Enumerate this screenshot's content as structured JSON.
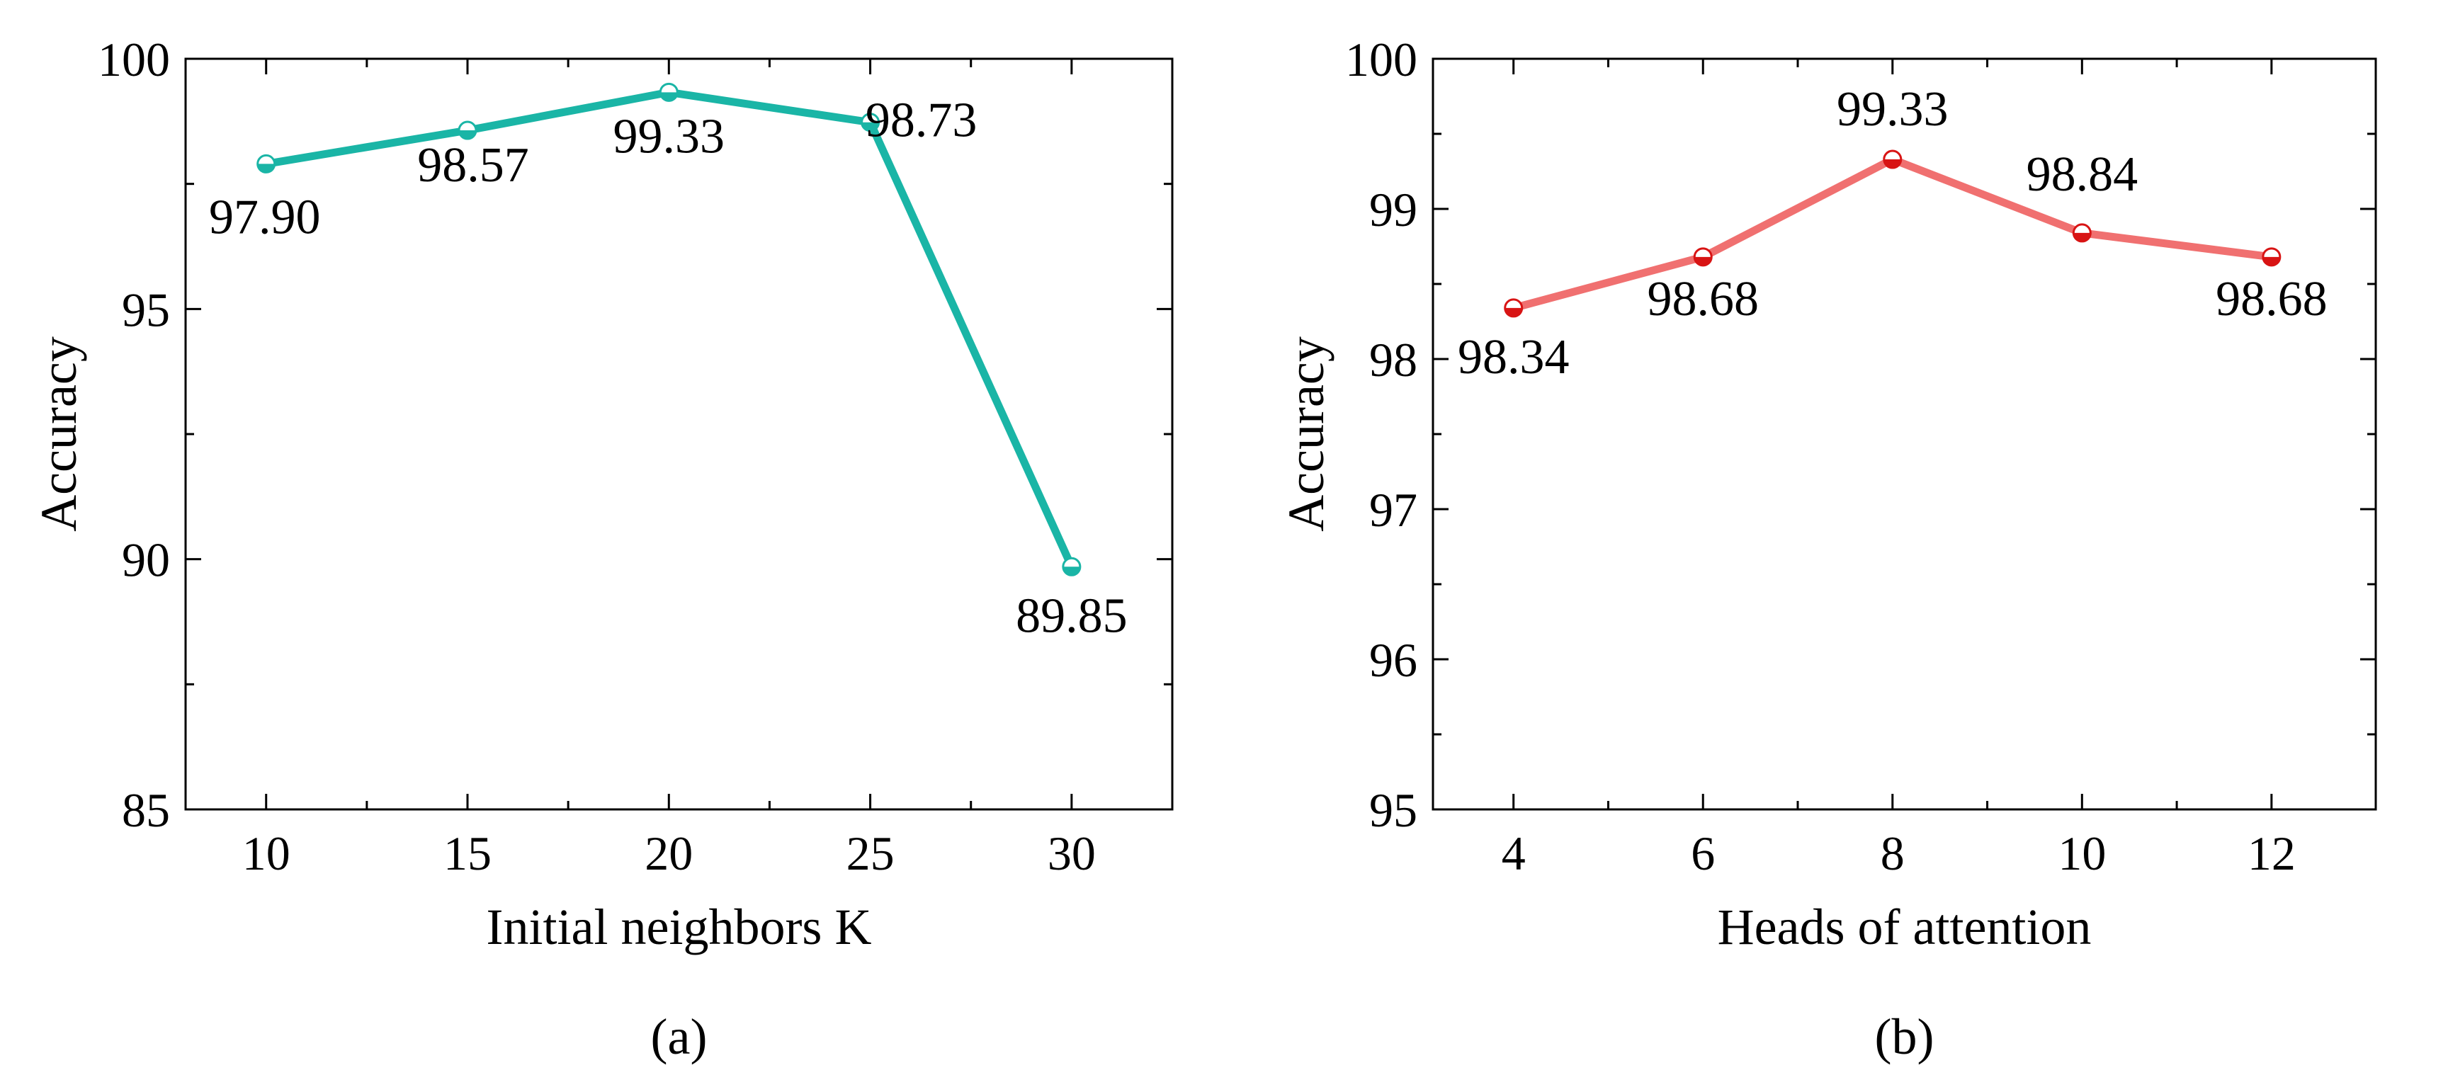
{
  "chart_data": [
    {
      "type": "line",
      "caption": "(a)",
      "xlabel": "Initial neighbors K",
      "ylabel": "Accuracy",
      "x": [
        10,
        15,
        20,
        25,
        30
      ],
      "xticks": [
        "10",
        "15",
        "20",
        "25",
        "30"
      ],
      "xlim": [
        8,
        32.5
      ],
      "ylim": [
        85,
        100
      ],
      "yticks": [
        "85",
        "90",
        "95",
        "100"
      ],
      "grid": false,
      "color": "#1ab5a6",
      "series": [
        {
          "name": "Accuracy",
          "values": [
            97.9,
            98.57,
            99.33,
            98.73,
            89.85
          ]
        }
      ],
      "data_labels": [
        "97.90",
        "98.57",
        "99.33",
        "98.73",
        "89.85"
      ]
    },
    {
      "type": "line",
      "caption": "(b)",
      "xlabel": "Heads of attention",
      "ylabel": "Accuracy",
      "x": [
        4,
        6,
        8,
        10,
        12
      ],
      "xticks": [
        "4",
        "6",
        "8",
        "10",
        "12"
      ],
      "xlim": [
        3.15,
        13.1
      ],
      "ylim": [
        95,
        100
      ],
      "yticks": [
        "95",
        "96",
        "97",
        "98",
        "99",
        "100"
      ],
      "grid": false,
      "color": "#f07070",
      "marker_color": "#d81414",
      "series": [
        {
          "name": "Accuracy",
          "values": [
            98.34,
            98.68,
            99.33,
            98.84,
            98.68
          ]
        }
      ],
      "data_labels": [
        "98.34",
        "98.68",
        "99.33",
        "98.84",
        "98.68"
      ]
    }
  ]
}
